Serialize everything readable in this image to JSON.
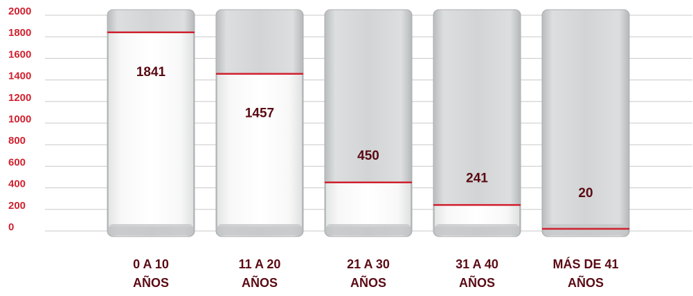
{
  "chart_data": {
    "type": "bar",
    "categories": [
      [
        "0 A 10",
        "AÑOS"
      ],
      [
        "11 A 20",
        "AÑOS"
      ],
      [
        "21 A 30",
        "AÑOS"
      ],
      [
        "31 A 40",
        "AÑOS"
      ],
      [
        "MÁS DE 41",
        "AÑOS"
      ]
    ],
    "values": [
      1841,
      1457,
      450,
      241,
      20
    ],
    "color": "#d0202e",
    "ylim": [
      0,
      2000
    ],
    "yticks": [
      0,
      200,
      400,
      600,
      800,
      1000,
      1200,
      1400,
      1600,
      1800,
      2000
    ],
    "grid": true
  }
}
